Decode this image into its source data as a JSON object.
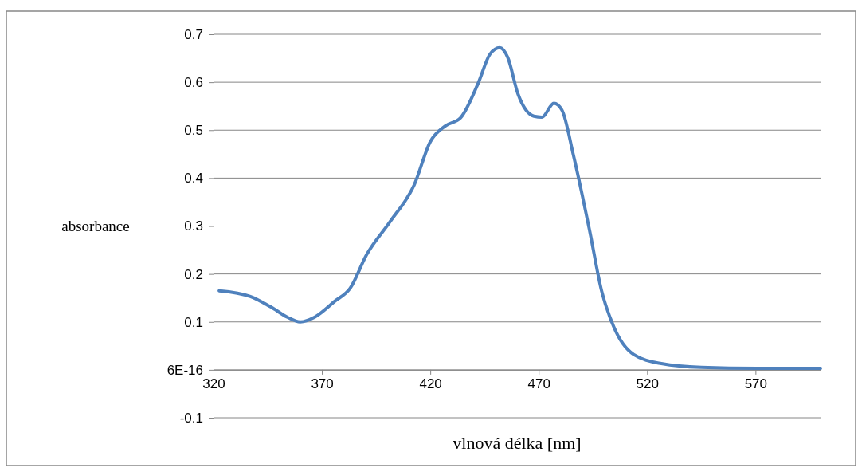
{
  "chart_data": {
    "type": "line",
    "xlabel": "vlnová délka [nm]",
    "ylabel": "absorbance",
    "xlim": [
      320,
      600
    ],
    "xticks": [
      320,
      370,
      420,
      470,
      520,
      570
    ],
    "ylim": [
      -0.1,
      0.7
    ],
    "yticks": [
      -0.1,
      0.1,
      {
        "value": 0,
        "label": "6E-16"
      },
      0.2,
      0.3,
      0.4,
      0.5,
      0.6,
      0.7
    ],
    "grid": "y",
    "marker": "none",
    "line_style": "solid",
    "series": [
      {
        "color": "#4f81bd",
        "x": [
          322.6,
          337,
          346.5,
          354,
          360,
          366.7,
          375.9,
          383,
          390.6,
          401.6,
          412.6,
          420,
          427,
          434,
          442,
          447.6,
          452,
          455.7,
          460.4,
          467.8,
          471.5,
          477,
          480.7,
          486,
          493.5,
          499,
          504.6,
          513.8,
          526.6,
          545,
          570.7,
          600
        ],
        "values": [
          0.165,
          0.153,
          0.131,
          0.11,
          0.1,
          0.11,
          0.143,
          0.17,
          0.24,
          0.31,
          0.386,
          0.476,
          0.509,
          0.526,
          0.597,
          0.659,
          0.672,
          0.652,
          0.576,
          0.529,
          0.527,
          0.556,
          0.542,
          0.448,
          0.29,
          0.165,
          0.09,
          0.032,
          0.013,
          0.005,
          0.003,
          0.003
        ]
      }
    ]
  }
}
